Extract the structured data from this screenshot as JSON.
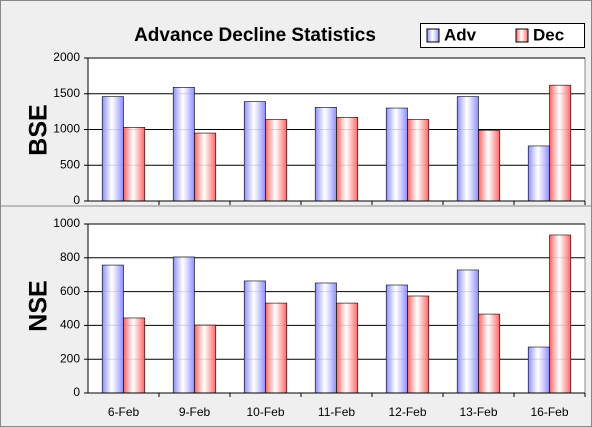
{
  "chart_data": [
    {
      "type": "bar",
      "title": "Advance Decline Statistics",
      "y_label": "BSE",
      "categories": [
        null,
        null,
        null,
        null,
        null,
        null,
        null
      ],
      "series": [
        {
          "name": "Adv",
          "color": "#8c8cff",
          "values": [
            1460,
            1590,
            1390,
            1310,
            1300,
            1460,
            770
          ]
        },
        {
          "name": "Dec",
          "color": "#ff6060",
          "values": [
            1030,
            950,
            1140,
            1170,
            1140,
            990,
            1620
          ]
        }
      ],
      "ylim": [
        0,
        2000
      ],
      "yticks": [
        0,
        500,
        1000,
        1500,
        2000
      ],
      "grid": true
    },
    {
      "type": "bar",
      "y_label": "NSE",
      "categories": [
        "6-Feb",
        "9-Feb",
        "10-Feb",
        "11-Feb",
        "12-Feb",
        "13-Feb",
        "16-Feb"
      ],
      "series": [
        {
          "color": "#8c8cff",
          "values": [
            757,
            805,
            663,
            651,
            639,
            728,
            272
          ]
        },
        {
          "color": "#ff6060",
          "values": [
            444,
            402,
            532,
            532,
            574,
            467,
            935
          ]
        }
      ],
      "ylim": [
        0,
        1000
      ],
      "yticks": [
        0,
        200,
        400,
        600,
        800,
        1000
      ],
      "grid": true
    }
  ]
}
